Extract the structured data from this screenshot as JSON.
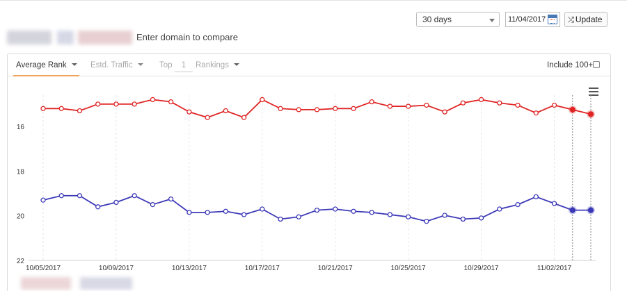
{
  "controls": {
    "period": "30 days",
    "date": "11/04/2017",
    "update_label": "Update"
  },
  "compare": {
    "link_label": "Enter domain to compare"
  },
  "tabs": {
    "average_rank": "Average Rank",
    "estd_traffic": "Estd. Traffic",
    "top_label": "Top",
    "top_value": "1",
    "rankings": "Rankings",
    "include_label": "Include 100+"
  },
  "chart_data": {
    "type": "line",
    "x": [
      "10/05/2017",
      "10/06/2017",
      "10/07/2017",
      "10/08/2017",
      "10/09/2017",
      "10/10/2017",
      "10/11/2017",
      "10/12/2017",
      "10/13/2017",
      "10/14/2017",
      "10/15/2017",
      "10/16/2017",
      "10/17/2017",
      "10/18/2017",
      "10/19/2017",
      "10/20/2017",
      "10/21/2017",
      "10/22/2017",
      "10/23/2017",
      "10/24/2017",
      "10/25/2017",
      "10/26/2017",
      "10/27/2017",
      "10/28/2017",
      "10/29/2017",
      "10/30/2017",
      "10/31/2017",
      "11/01/2017",
      "11/02/2017",
      "11/03/2017",
      "11/04/2017"
    ],
    "xticks": [
      "10/05/2017",
      "10/09/2017",
      "10/13/2017",
      "10/17/2017",
      "10/21/2017",
      "10/25/2017",
      "10/29/2017",
      "11/02/2017"
    ],
    "yticks": [
      16,
      18,
      20,
      22
    ],
    "ylim": [
      14.6,
      22
    ],
    "y_reversed": true,
    "grid": "vertical",
    "series": [
      {
        "color": "#e02424",
        "values": [
          15.2,
          15.2,
          15.3,
          15.0,
          15.0,
          15.0,
          14.8,
          14.9,
          15.35,
          15.6,
          15.3,
          15.6,
          14.8,
          15.2,
          15.25,
          15.25,
          15.2,
          15.2,
          14.9,
          15.1,
          15.1,
          15.05,
          15.35,
          14.95,
          14.8,
          14.95,
          15.05,
          15.4,
          15.05,
          15.25,
          15.45
        ]
      },
      {
        "color": "#3b38b8",
        "values": [
          19.3,
          19.1,
          19.1,
          19.6,
          19.4,
          19.1,
          19.5,
          19.25,
          19.85,
          19.85,
          19.8,
          19.95,
          19.7,
          20.15,
          20.05,
          19.75,
          19.7,
          19.8,
          19.85,
          19.95,
          20.05,
          20.25,
          19.98,
          20.15,
          20.1,
          19.7,
          19.5,
          19.15,
          19.45,
          19.75,
          19.75
        ]
      }
    ],
    "highlight_index": [
      29,
      30
    ],
    "colors": {
      "red": "#e02424",
      "blue": "#3b38b8",
      "accent": "#f0a35a"
    }
  }
}
